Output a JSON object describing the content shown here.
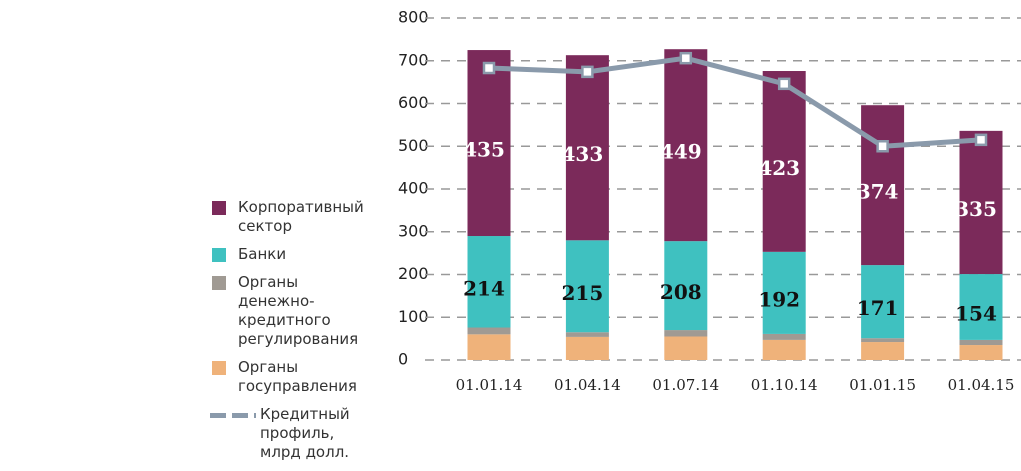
{
  "chart_data": {
    "type": "bar",
    "stacked": true,
    "categories": [
      "01.01.14",
      "01.04.14",
      "01.07.14",
      "01.10.14",
      "01.01.15",
      "01.04.15"
    ],
    "series": [
      {
        "name": "Корпоративный сектор",
        "color": "#7b2a5a",
        "values": [
          435,
          433,
          449,
          423,
          374,
          335
        ],
        "show_labels": true,
        "label_color": "#ffffff"
      },
      {
        "name": "Банки",
        "color": "#3fc1c0",
        "values": [
          214,
          215,
          208,
          192,
          171,
          154
        ],
        "show_labels": true,
        "label_color": "#111111"
      },
      {
        "name": "Органы денежно-кредитного регулирования",
        "color": "#a09a93",
        "values": [
          16,
          11,
          15,
          14,
          9,
          12
        ]
      },
      {
        "name": "Органы госуправления",
        "color": "#efb27a",
        "values": [
          60,
          54,
          55,
          47,
          42,
          35
        ]
      },
      {
        "name": "Кредитный профиль, млрд долл.",
        "type": "line",
        "color": "#8a9aab",
        "values": [
          683,
          674,
          706,
          646,
          500,
          515
        ]
      }
    ],
    "ylim": [
      0,
      800
    ],
    "yticks": [
      0,
      100,
      200,
      300,
      400,
      500,
      600,
      700,
      800
    ],
    "grid": true,
    "legend": "left"
  }
}
